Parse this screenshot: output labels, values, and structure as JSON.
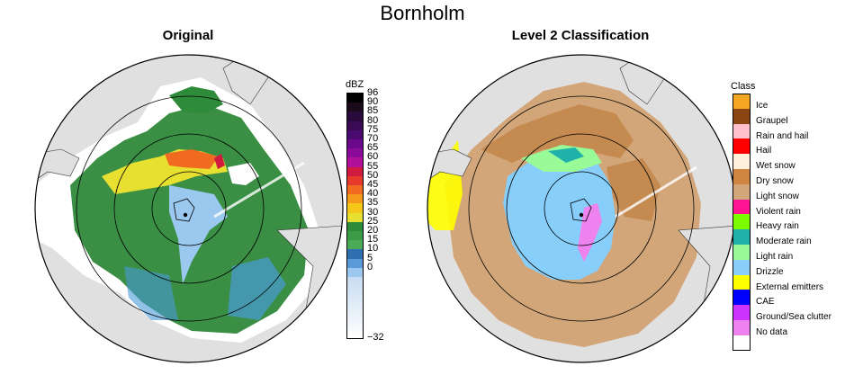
{
  "title": "Bornholm",
  "panels": {
    "original": {
      "title": "Original"
    },
    "classification": {
      "title": "Level 2 Classification"
    }
  },
  "colorbar": {
    "unit": "dBZ",
    "ticks": [
      "96",
      "90",
      "85",
      "80",
      "75",
      "70",
      "65",
      "60",
      "55",
      "50",
      "45",
      "40",
      "35",
      "30",
      "25",
      "20",
      "15",
      "10",
      "5",
      "0",
      "−32"
    ],
    "colors": [
      "#000000",
      "#1a0a1a",
      "#2a0a3a",
      "#3a0a55",
      "#4b0a70",
      "#6a0a8a",
      "#8a0a9a",
      "#b0109a",
      "#d01a40",
      "#e83a2a",
      "#f06a20",
      "#f59a1a",
      "#f5c81a",
      "#e8e030",
      "#2e8b3a",
      "#3a9a45",
      "#4aaa55",
      "#2f6fb0",
      "#5a9ad8",
      "#9bc8ee",
      "#dceaf8"
    ]
  },
  "legend": {
    "title": "Class",
    "items": [
      {
        "label": "Ice",
        "color": "#f5a623"
      },
      {
        "label": "Graupel",
        "color": "#8b4513"
      },
      {
        "label": "Rain and hail",
        "color": "#ffc0cb"
      },
      {
        "label": "Hail",
        "color": "#ff0000"
      },
      {
        "label": "Wet snow",
        "color": "#fff0dc"
      },
      {
        "label": "Dry snow",
        "color": "#cd853f"
      },
      {
        "label": "Light snow",
        "color": "#d2a679"
      },
      {
        "label": "Violent rain",
        "color": "#ff1493"
      },
      {
        "label": "Heavy rain",
        "color": "#7cfc00"
      },
      {
        "label": "Moderate rain",
        "color": "#20b2aa"
      },
      {
        "label": "Light rain",
        "color": "#98fb98"
      },
      {
        "label": "Drizzle",
        "color": "#87cefa"
      },
      {
        "label": "External emitters",
        "color": "#ffff00"
      },
      {
        "label": "CAE",
        "color": "#0000ff"
      },
      {
        "label": "Ground/Sea clutter",
        "color": "#cc33ff"
      },
      {
        "label": "No data",
        "color": "#ee82ee"
      },
      {
        "label": "",
        "color": "#ffffff"
      }
    ]
  }
}
